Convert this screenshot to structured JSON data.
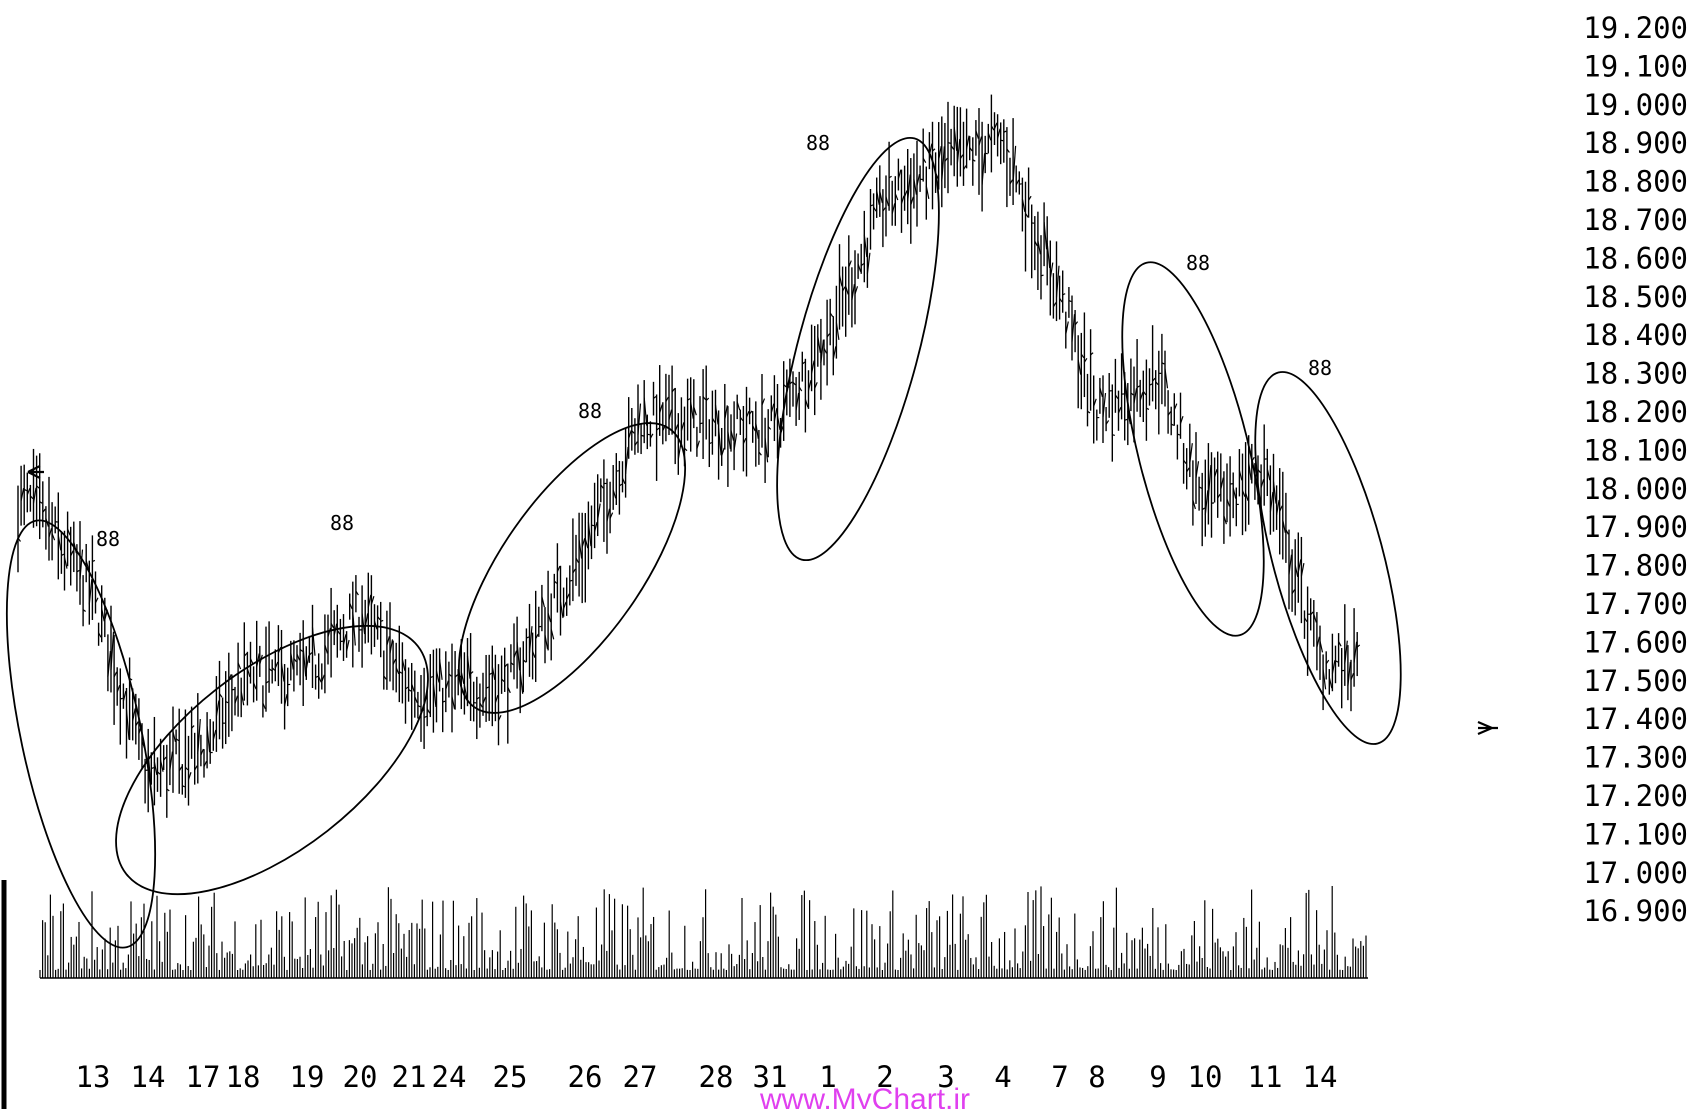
{
  "chart_data": {
    "type": "bar",
    "title": "",
    "xlabel": "",
    "ylabel": "",
    "ylim": [
      16.9,
      19.2
    ],
    "grid": false,
    "y_ticks": [
      "19.200",
      "19.100",
      "19.000",
      "18.900",
      "18.800",
      "18.700",
      "18.600",
      "18.500",
      "18.400",
      "18.300",
      "18.200",
      "18.100",
      "18.000",
      "17.900",
      "17.800",
      "17.700",
      "17.600",
      "17.500",
      "17.400",
      "17.300",
      "17.200",
      "17.100",
      "17.000",
      "16.900"
    ],
    "x_ticks": [
      "13",
      "14",
      "17",
      "18",
      "19",
      "20",
      "21",
      "24",
      "25",
      "26",
      "27",
      "28",
      "31",
      "1",
      "2",
      "3",
      "4",
      "7",
      "8",
      "9",
      "10",
      "11",
      "14"
    ],
    "series": [
      {
        "values": [
          {
            "x": "13",
            "value": 17.72
          },
          {
            "x": "14",
            "value": 17.25
          },
          {
            "x": "17",
            "value": 17.32
          },
          {
            "x": "18",
            "value": 17.5
          },
          {
            "x": "19",
            "value": 17.52
          },
          {
            "x": "20",
            "value": 17.68
          },
          {
            "x": "21",
            "value": 17.48
          },
          {
            "x": "24",
            "value": 17.47
          },
          {
            "x": "25",
            "value": 17.5
          },
          {
            "x": "26",
            "value": 17.85
          },
          {
            "x": "27",
            "value": 18.18
          },
          {
            "x": "28",
            "value": 18.17
          },
          {
            "x": "31",
            "value": 18.15
          },
          {
            "x": "1",
            "value": 18.4
          },
          {
            "x": "2",
            "value": 18.75
          },
          {
            "x": "3",
            "value": 18.85
          },
          {
            "x": "4",
            "value": 18.9
          },
          {
            "x": "7",
            "value": 18.5
          },
          {
            "x": "8",
            "value": 18.2
          },
          {
            "x": "9",
            "value": 18.3
          },
          {
            "x": "10",
            "value": 17.95
          },
          {
            "x": "11",
            "value": 18.05
          },
          {
            "x": "14",
            "value": 17.55
          }
        ]
      }
    ],
    "pattern_labels": [
      "88",
      "88",
      "88",
      "88",
      "88",
      "88"
    ],
    "watermark": "www.MyChart.ir"
  }
}
